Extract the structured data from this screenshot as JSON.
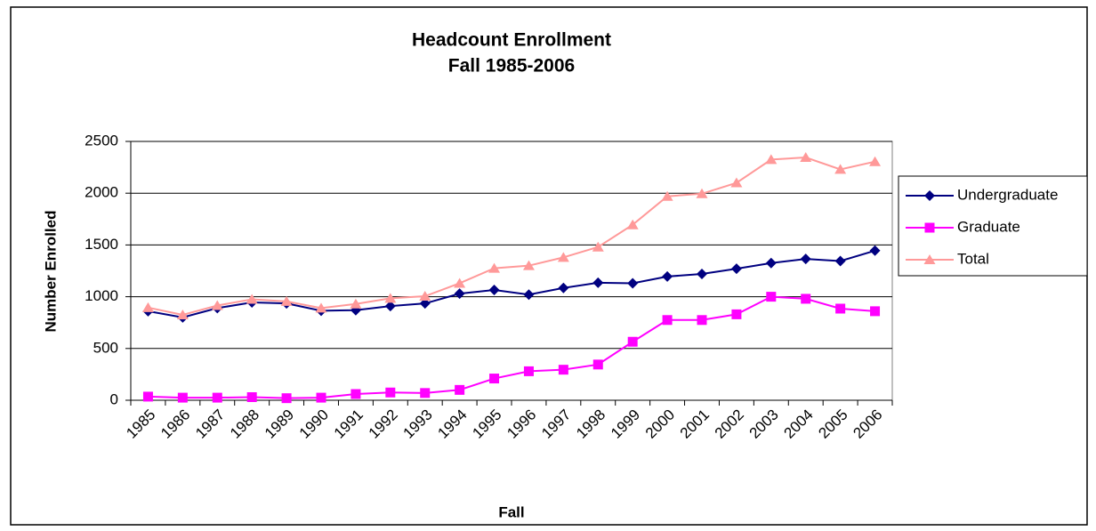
{
  "chart_data": {
    "type": "line",
    "title": [
      "Headcount Enrollment",
      "Fall 1985-2006"
    ],
    "x_label": "Fall",
    "y_label": "Number Enrolled",
    "categories": [
      "1985",
      "1986",
      "1987",
      "1988",
      "1989",
      "1990",
      "1991",
      "1992",
      "1993",
      "1994",
      "1995",
      "1996",
      "1997",
      "1998",
      "1999",
      "2000",
      "2001",
      "2002",
      "2003",
      "2004",
      "2005",
      "2006"
    ],
    "series": [
      {
        "name": "Undergraduate",
        "color": "#000080",
        "marker": "diamond",
        "values": [
          860,
          800,
          890,
          945,
          935,
          865,
          870,
          910,
          935,
          1030,
          1065,
          1020,
          1085,
          1135,
          1130,
          1195,
          1220,
          1270,
          1325,
          1365,
          1345,
          1445
        ]
      },
      {
        "name": "Graduate",
        "color": "#ff00ff",
        "marker": "square",
        "values": [
          35,
          25,
          25,
          30,
          20,
          25,
          60,
          75,
          70,
          100,
          210,
          280,
          295,
          345,
          565,
          775,
          775,
          830,
          1000,
          980,
          885,
          860
        ]
      },
      {
        "name": "Total",
        "color": "#ff9999",
        "marker": "triangle",
        "values": [
          895,
          825,
          915,
          975,
          955,
          890,
          930,
          985,
          1005,
          1130,
          1275,
          1300,
          1380,
          1480,
          1695,
          1970,
          1995,
          2100,
          2325,
          2345,
          2230,
          2305
        ]
      }
    ],
    "ylim": [
      0,
      2500
    ],
    "yticks": [
      0,
      500,
      1000,
      1500,
      2000,
      2500
    ],
    "grid": true,
    "legend": "right"
  }
}
